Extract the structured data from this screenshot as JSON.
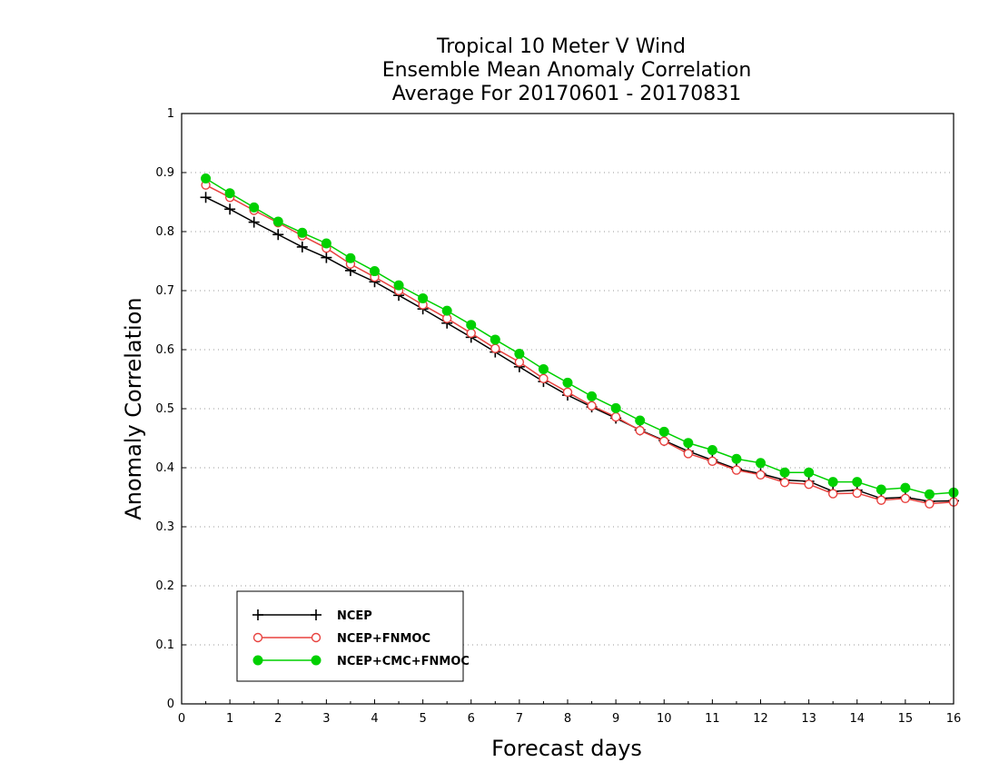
{
  "chart_data": {
    "type": "line",
    "title": [
      "Tropical 10 Meter V Wind",
      "Ensemble Mean Anomaly Correlation",
      "Average For 20170601 - 20170831"
    ],
    "xlabel": "Forecast days",
    "ylabel": "Anomaly Correlation",
    "xlim": [
      0,
      16
    ],
    "ylim": [
      0,
      1
    ],
    "xticks": [
      "0",
      "1",
      "2",
      "3",
      "4",
      "5",
      "6",
      "7",
      "8",
      "9",
      "10",
      "11",
      "12",
      "13",
      "14",
      "15",
      "16"
    ],
    "yticks": [
      "0",
      "0.1",
      "0.2",
      "0.3",
      "0.4",
      "0.5",
      "0.6",
      "0.7",
      "0.8",
      "0.9",
      "1"
    ],
    "grid": "dotted horizontal",
    "legend_position": "bottom-left",
    "x": [
      0.5,
      1,
      1.5,
      2,
      2.5,
      3,
      3.5,
      4,
      4.5,
      5,
      5.5,
      6,
      6.5,
      7,
      7.5,
      8,
      8.5,
      9,
      9.5,
      10,
      10.5,
      11,
      11.5,
      12,
      12.5,
      13,
      13.5,
      14,
      14.5,
      15,
      15.5,
      16
    ],
    "series": [
      {
        "name": "NCEP",
        "color": "#000000",
        "marker": "plus",
        "values": [
          0.858,
          0.838,
          0.816,
          0.795,
          0.774,
          0.756,
          0.734,
          0.715,
          0.692,
          0.669,
          0.645,
          0.621,
          0.596,
          0.571,
          0.546,
          0.523,
          0.503,
          0.484,
          0.464,
          0.446,
          0.428,
          0.413,
          0.398,
          0.39,
          0.379,
          0.377,
          0.36,
          0.362,
          0.348,
          0.35,
          0.343,
          0.344
        ]
      },
      {
        "name": "NCEP+FNMOC",
        "color": "#e8423f",
        "marker": "open-circle",
        "values": [
          0.879,
          0.858,
          0.836,
          0.815,
          0.793,
          0.772,
          0.745,
          0.723,
          0.7,
          0.676,
          0.653,
          0.628,
          0.602,
          0.579,
          0.551,
          0.528,
          0.505,
          0.486,
          0.463,
          0.445,
          0.424,
          0.411,
          0.396,
          0.388,
          0.375,
          0.372,
          0.356,
          0.357,
          0.345,
          0.348,
          0.339,
          0.342
        ]
      },
      {
        "name": "NCEP+CMC+FNMOC",
        "color": "#00d000",
        "marker": "filled-circle",
        "values": [
          0.89,
          0.865,
          0.841,
          0.817,
          0.798,
          0.78,
          0.755,
          0.733,
          0.709,
          0.687,
          0.666,
          0.642,
          0.617,
          0.593,
          0.567,
          0.544,
          0.521,
          0.501,
          0.48,
          0.461,
          0.442,
          0.43,
          0.415,
          0.408,
          0.392,
          0.392,
          0.376,
          0.376,
          0.363,
          0.366,
          0.355,
          0.358
        ]
      }
    ]
  }
}
